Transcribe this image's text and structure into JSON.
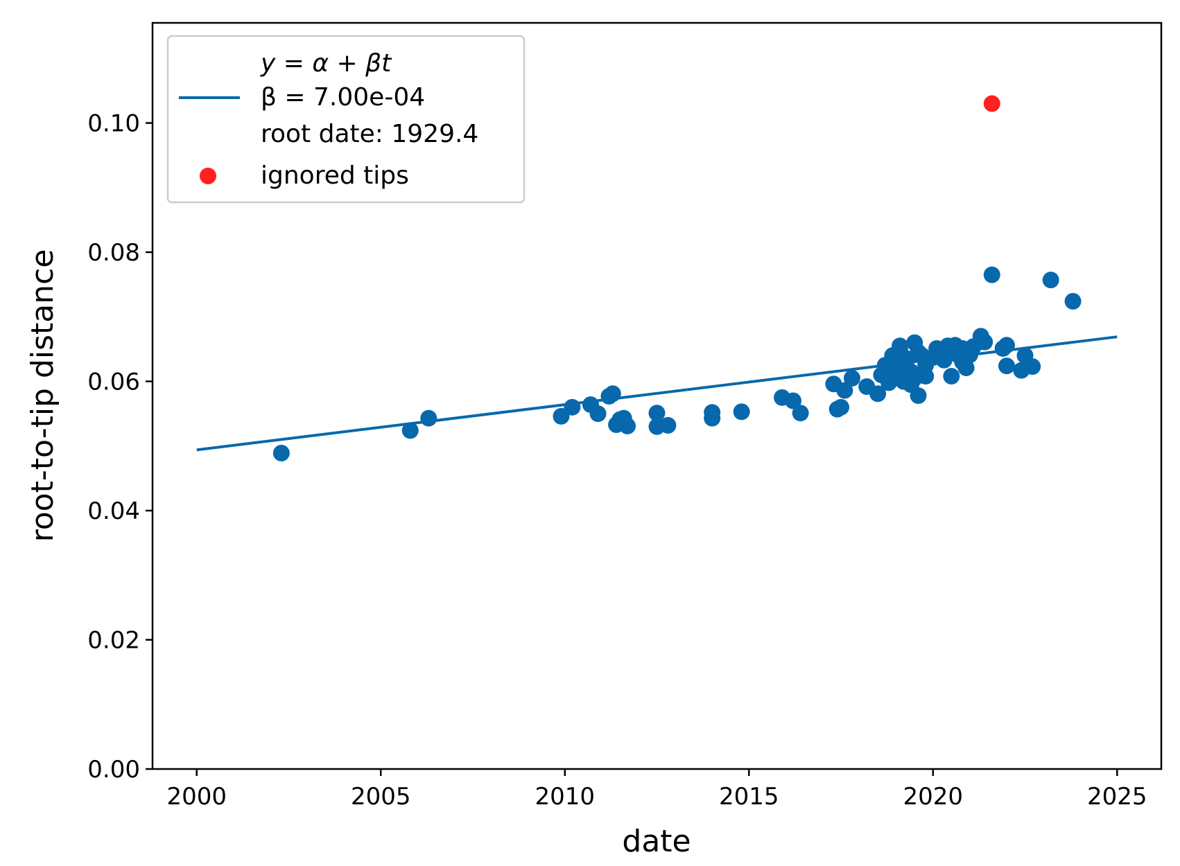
{
  "chart_data": {
    "type": "scatter",
    "title": "",
    "xlabel": "date",
    "ylabel": "root-to-tip distance",
    "xlim": [
      1998.8,
      2026.2
    ],
    "ylim": [
      0.0,
      0.1155
    ],
    "grid": false,
    "legend_position": "top-left",
    "xticks": [
      2000,
      2005,
      2010,
      2015,
      2020,
      2025
    ],
    "xtick_labels": [
      "2000",
      "2005",
      "2010",
      "2015",
      "2020",
      "2025"
    ],
    "yticks": [
      0.0,
      0.02,
      0.04,
      0.06,
      0.08,
      0.1
    ],
    "ytick_labels": [
      "0.00",
      "0.02",
      "0.04",
      "0.06",
      "0.08",
      "0.10"
    ],
    "colors": {
      "fit_line": "#0868ac",
      "tips": "#0868ac",
      "ignored": "#ff2020"
    },
    "legend": {
      "fit_line_lines": [
        "y = α + βt",
        "β = 7.00e-04",
        "root date: 1929.4"
      ],
      "ignored_label": "ignored tips"
    },
    "fit_line": {
      "name": "y = α + βt",
      "slope": 0.0007,
      "root_date": 1929.4,
      "x": [
        2000.0,
        2025.0
      ],
      "y": [
        0.0494,
        0.0669
      ]
    },
    "series": [
      {
        "role": "tips",
        "x": [
          2002.3,
          2005.8,
          2006.3,
          2009.9,
          2010.2,
          2010.7,
          2010.9,
          2011.2,
          2011.3,
          2011.4,
          2011.5,
          2011.6,
          2011.7,
          2012.5,
          2012.5,
          2012.8,
          2014.0,
          2014.0,
          2014.8,
          2015.9,
          2016.2,
          2016.4,
          2017.3,
          2017.4,
          2017.5,
          2017.6,
          2017.8,
          2018.2,
          2018.5,
          2018.6,
          2018.7,
          2018.8,
          2018.9,
          2019.0,
          2019.1,
          2019.2,
          2019.3,
          2019.4,
          2019.5,
          2019.6,
          2019.7,
          2019.8,
          2018.8,
          2019.0,
          2019.2,
          2019.4,
          2019.6,
          2019.8,
          2018.9,
          2019.1,
          2019.3,
          2019.5,
          2019.7,
          2020.0,
          2020.1,
          2020.2,
          2020.3,
          2020.4,
          2020.5,
          2020.6,
          2020.7,
          2020.8,
          2020.9,
          2021.0,
          2021.1,
          2020.3,
          2020.5,
          2020.8,
          2021.3,
          2021.4,
          2021.6,
          2021.9,
          2022.0,
          2022.0,
          2022.4,
          2022.5,
          2022.7,
          2023.2,
          2023.8
        ],
        "y": [
          0.0489,
          0.0524,
          0.0543,
          0.0546,
          0.056,
          0.0564,
          0.055,
          0.0577,
          0.0581,
          0.0533,
          0.0541,
          0.0543,
          0.0531,
          0.0551,
          0.053,
          0.0532,
          0.0543,
          0.0552,
          0.0553,
          0.0575,
          0.057,
          0.0551,
          0.0596,
          0.0557,
          0.056,
          0.0586,
          0.0605,
          0.0592,
          0.0581,
          0.061,
          0.0625,
          0.0605,
          0.064,
          0.062,
          0.0655,
          0.06,
          0.0635,
          0.0615,
          0.066,
          0.0645,
          0.061,
          0.0608,
          0.0598,
          0.0612,
          0.0628,
          0.0595,
          0.0578,
          0.0625,
          0.063,
          0.0648,
          0.062,
          0.0605,
          0.064,
          0.0637,
          0.0651,
          0.0644,
          0.0633,
          0.0655,
          0.0608,
          0.0656,
          0.064,
          0.0651,
          0.0621,
          0.0641,
          0.0654,
          0.065,
          0.0645,
          0.063,
          0.067,
          0.0661,
          0.0765,
          0.0651,
          0.0656,
          0.0624,
          0.0617,
          0.064,
          0.0623,
          0.0757,
          0.0724
        ]
      },
      {
        "role": "ignored",
        "x": [
          2021.6
        ],
        "y": [
          0.103
        ]
      }
    ]
  }
}
